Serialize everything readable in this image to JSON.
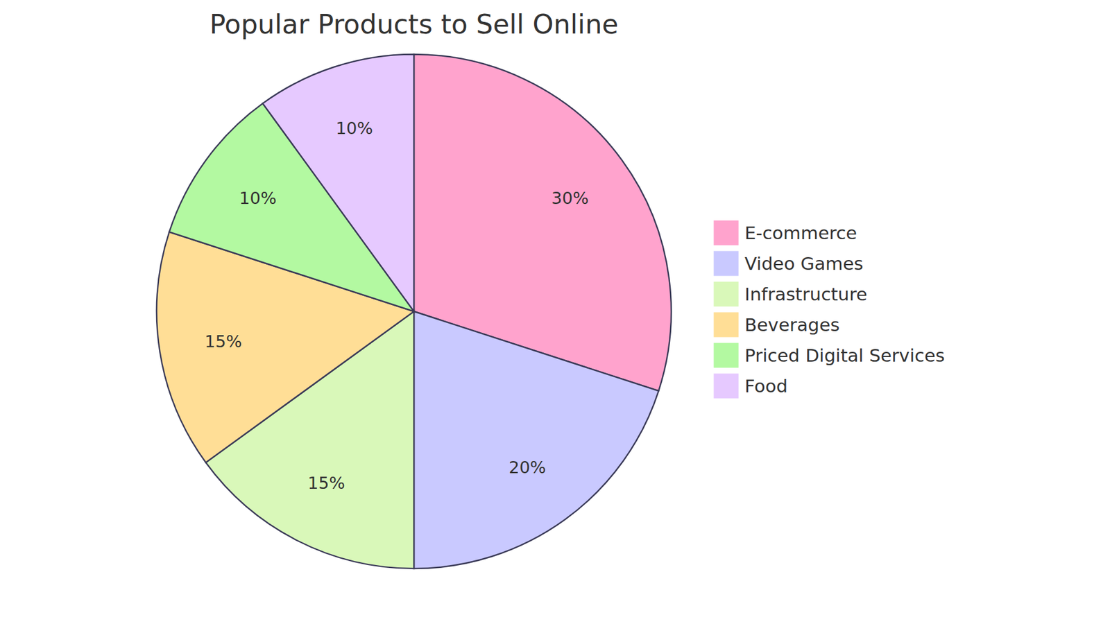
{
  "chart_data": {
    "type": "pie",
    "title": "Popular Products to Sell Online",
    "categories": [
      "E-commerce",
      "Video Games",
      "Infrastructure",
      "Beverages",
      "Priced Digital Services",
      "Food"
    ],
    "values": [
      30,
      20,
      15,
      15,
      10,
      10
    ],
    "value_labels": [
      "30%",
      "20%",
      "15%",
      "15%",
      "10%",
      "10%"
    ],
    "colors": [
      "#ffa3cd",
      "#c9c9ff",
      "#d9f8b9",
      "#ffde96",
      "#b3f9a1",
      "#e6c9ff"
    ],
    "data_labels": true,
    "legend": "right"
  }
}
